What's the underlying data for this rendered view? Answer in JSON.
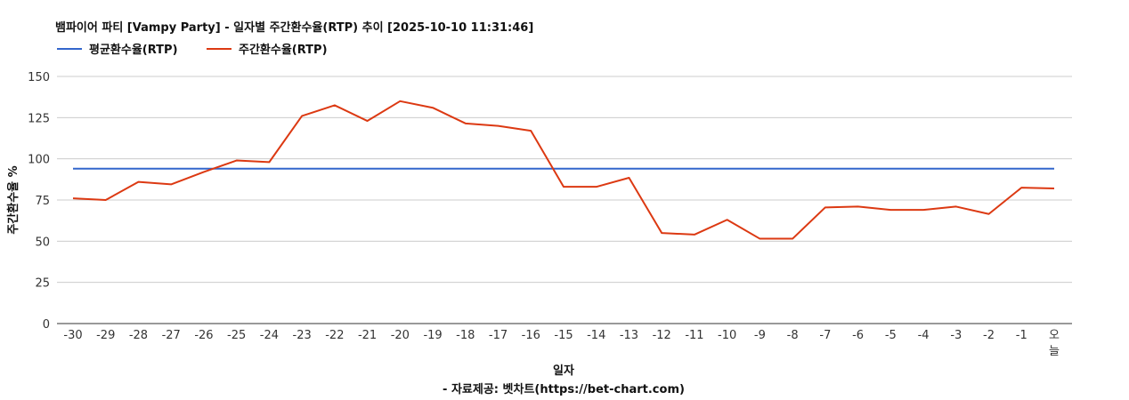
{
  "chart_data": {
    "type": "line",
    "title": "뱀파이어 파티 [Vampy Party] - 일자별 주간환수율(RTP) 추이 [2025-10-10 11:31:46]",
    "xlabel": "일자",
    "ylabel": "주간환수율 %",
    "source": "- 자료제공: 벳차트(https://bet-chart.com)",
    "categories": [
      "-30",
      "-29",
      "-28",
      "-27",
      "-26",
      "-25",
      "-24",
      "-23",
      "-22",
      "-21",
      "-20",
      "-19",
      "-18",
      "-17",
      "-16",
      "-15",
      "-14",
      "-13",
      "-12",
      "-11",
      "-10",
      "-9",
      "-8",
      "-7",
      "-6",
      "-5",
      "-4",
      "-3",
      "-2",
      "-1",
      "오늘"
    ],
    "yticks": [
      "0",
      "25",
      "50",
      "75",
      "100",
      "125",
      "150"
    ],
    "ylim": [
      0,
      150
    ],
    "grid": true,
    "legend_position": "top-left",
    "series": [
      {
        "name": "평균환수율(RTP)",
        "color": "#3366cc",
        "values": [
          94,
          94,
          94,
          94,
          94,
          94,
          94,
          94,
          94,
          94,
          94,
          94,
          94,
          94,
          94,
          94,
          94,
          94,
          94,
          94,
          94,
          94,
          94,
          94,
          94,
          94,
          94,
          94,
          94,
          94,
          94
        ]
      },
      {
        "name": "주간환수율(RTP)",
        "color": "#dc3912",
        "values": [
          76,
          75,
          86,
          84.5,
          92,
          99,
          98,
          126,
          132.5,
          123,
          135,
          131,
          121.5,
          120,
          117,
          83,
          83,
          88.5,
          55,
          54,
          63,
          51.5,
          51.5,
          70.5,
          71,
          69,
          69,
          71,
          66.5,
          82.5,
          82
        ]
      }
    ]
  }
}
